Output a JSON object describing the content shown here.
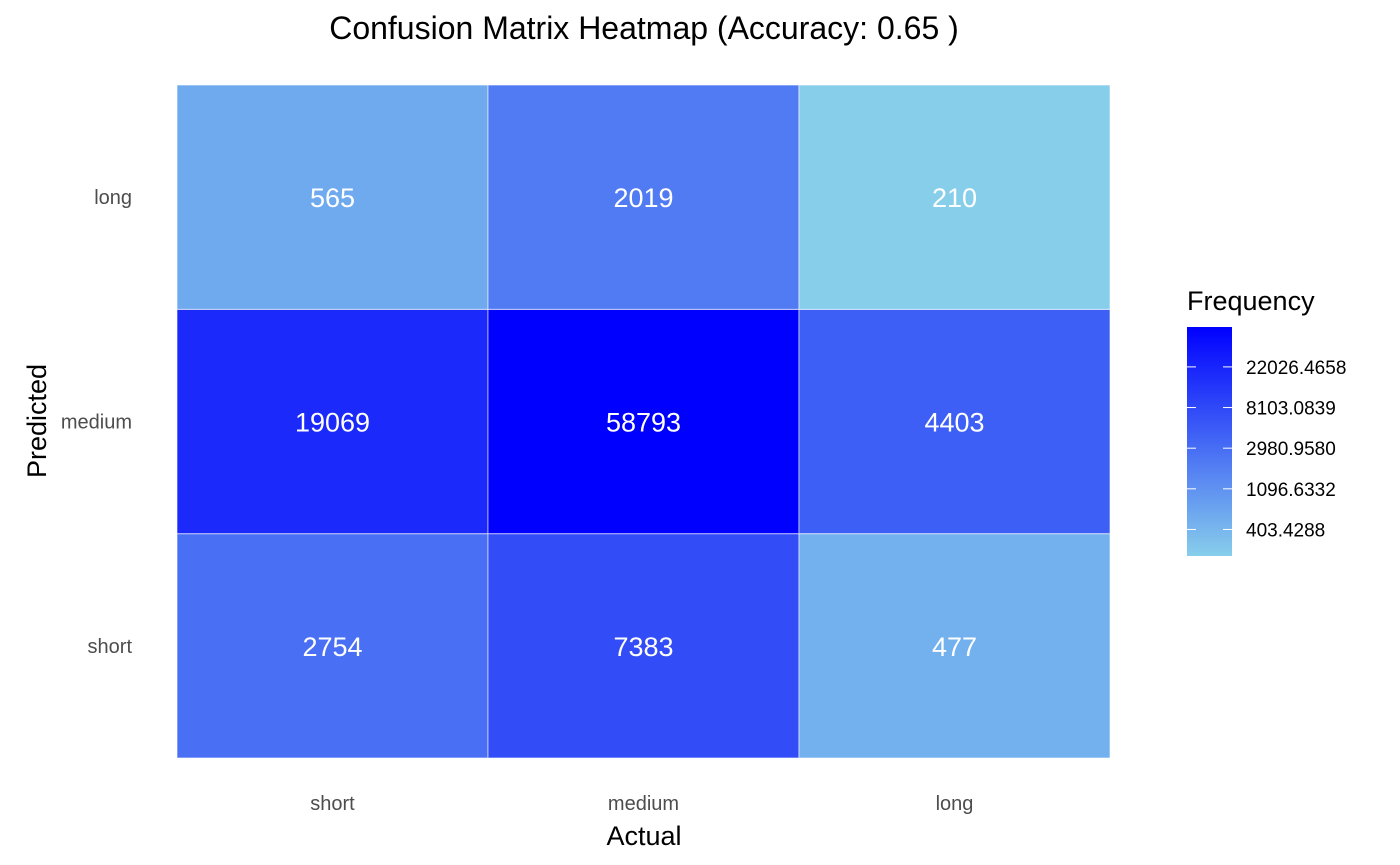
{
  "chart_data": {
    "type": "heatmap",
    "title": "Confusion Matrix Heatmap (Accuracy: 0.65 )",
    "xlabel": "Actual",
    "ylabel": "Predicted",
    "x_categories": [
      "short",
      "medium",
      "long"
    ],
    "y_categories": [
      "short",
      "medium",
      "long"
    ],
    "values": [
      [
        2754,
        7383,
        477
      ],
      [
        19069,
        58793,
        4403
      ],
      [
        565,
        2019,
        210
      ]
    ],
    "color_scale": {
      "type": "log",
      "low_color": "#87CEEB",
      "high_color": "#0000FF",
      "min": 210,
      "max": 58793
    },
    "legend": {
      "title": "Frequency",
      "ticks": [
        403.4288,
        1096.6332,
        2980.958,
        8103.0839,
        22026.4658
      ],
      "tick_labels": [
        "403.4288",
        "1096.6332",
        "2980.9580",
        "8103.0839",
        "22026.4658"
      ],
      "position": "right"
    },
    "cell_label_color": "#FFFFFF",
    "grid": false
  }
}
